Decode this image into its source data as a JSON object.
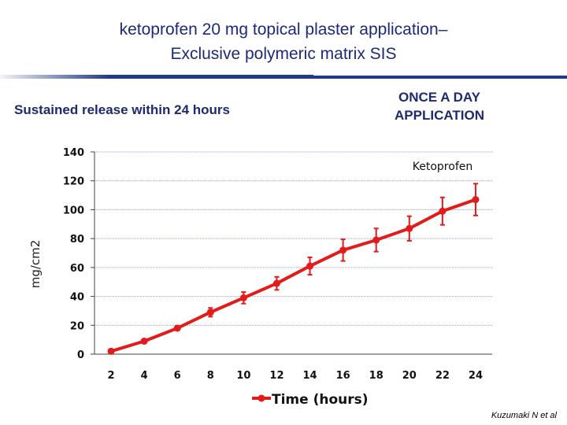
{
  "slide": {
    "title_line1": "ketoprofen 20 mg topical plaster application–",
    "title_line2": "Exclusive polymeric matrix SIS",
    "subtitle": "Sustained release within 24 hours",
    "note_line1": "ONCE A DAY",
    "note_line2": "APPLICATION",
    "credit": "Kuzumaki N et al"
  },
  "colors": {
    "title": "#1c2a78",
    "rule": "#1e3a8a",
    "series": "#e31b1b",
    "grid": "#8fa0b8"
  },
  "chart_data": {
    "type": "line",
    "title": "",
    "xlabel": "Time (hours)",
    "ylabel": "mg/cm2",
    "x": [
      2,
      4,
      6,
      8,
      10,
      12,
      14,
      16,
      18,
      20,
      22,
      24
    ],
    "xticks": [
      "2",
      "4",
      "6",
      "8",
      "10",
      "12",
      "14",
      "16",
      "18",
      "20",
      "22",
      "24"
    ],
    "ylim": [
      0,
      140
    ],
    "yticks": [
      0,
      20,
      40,
      60,
      80,
      100,
      120,
      140
    ],
    "grid": true,
    "series": [
      {
        "name": "Ketoprofen",
        "values": [
          2,
          9,
          18,
          29,
          39,
          49,
          61,
          72,
          79,
          87,
          99,
          107
        ],
        "error": [
          1,
          1,
          1.5,
          3,
          4,
          4.5,
          6,
          7.5,
          8,
          8.5,
          9.5,
          11
        ]
      }
    ],
    "legend_position": "bottom",
    "series_label_position": "top-right"
  }
}
